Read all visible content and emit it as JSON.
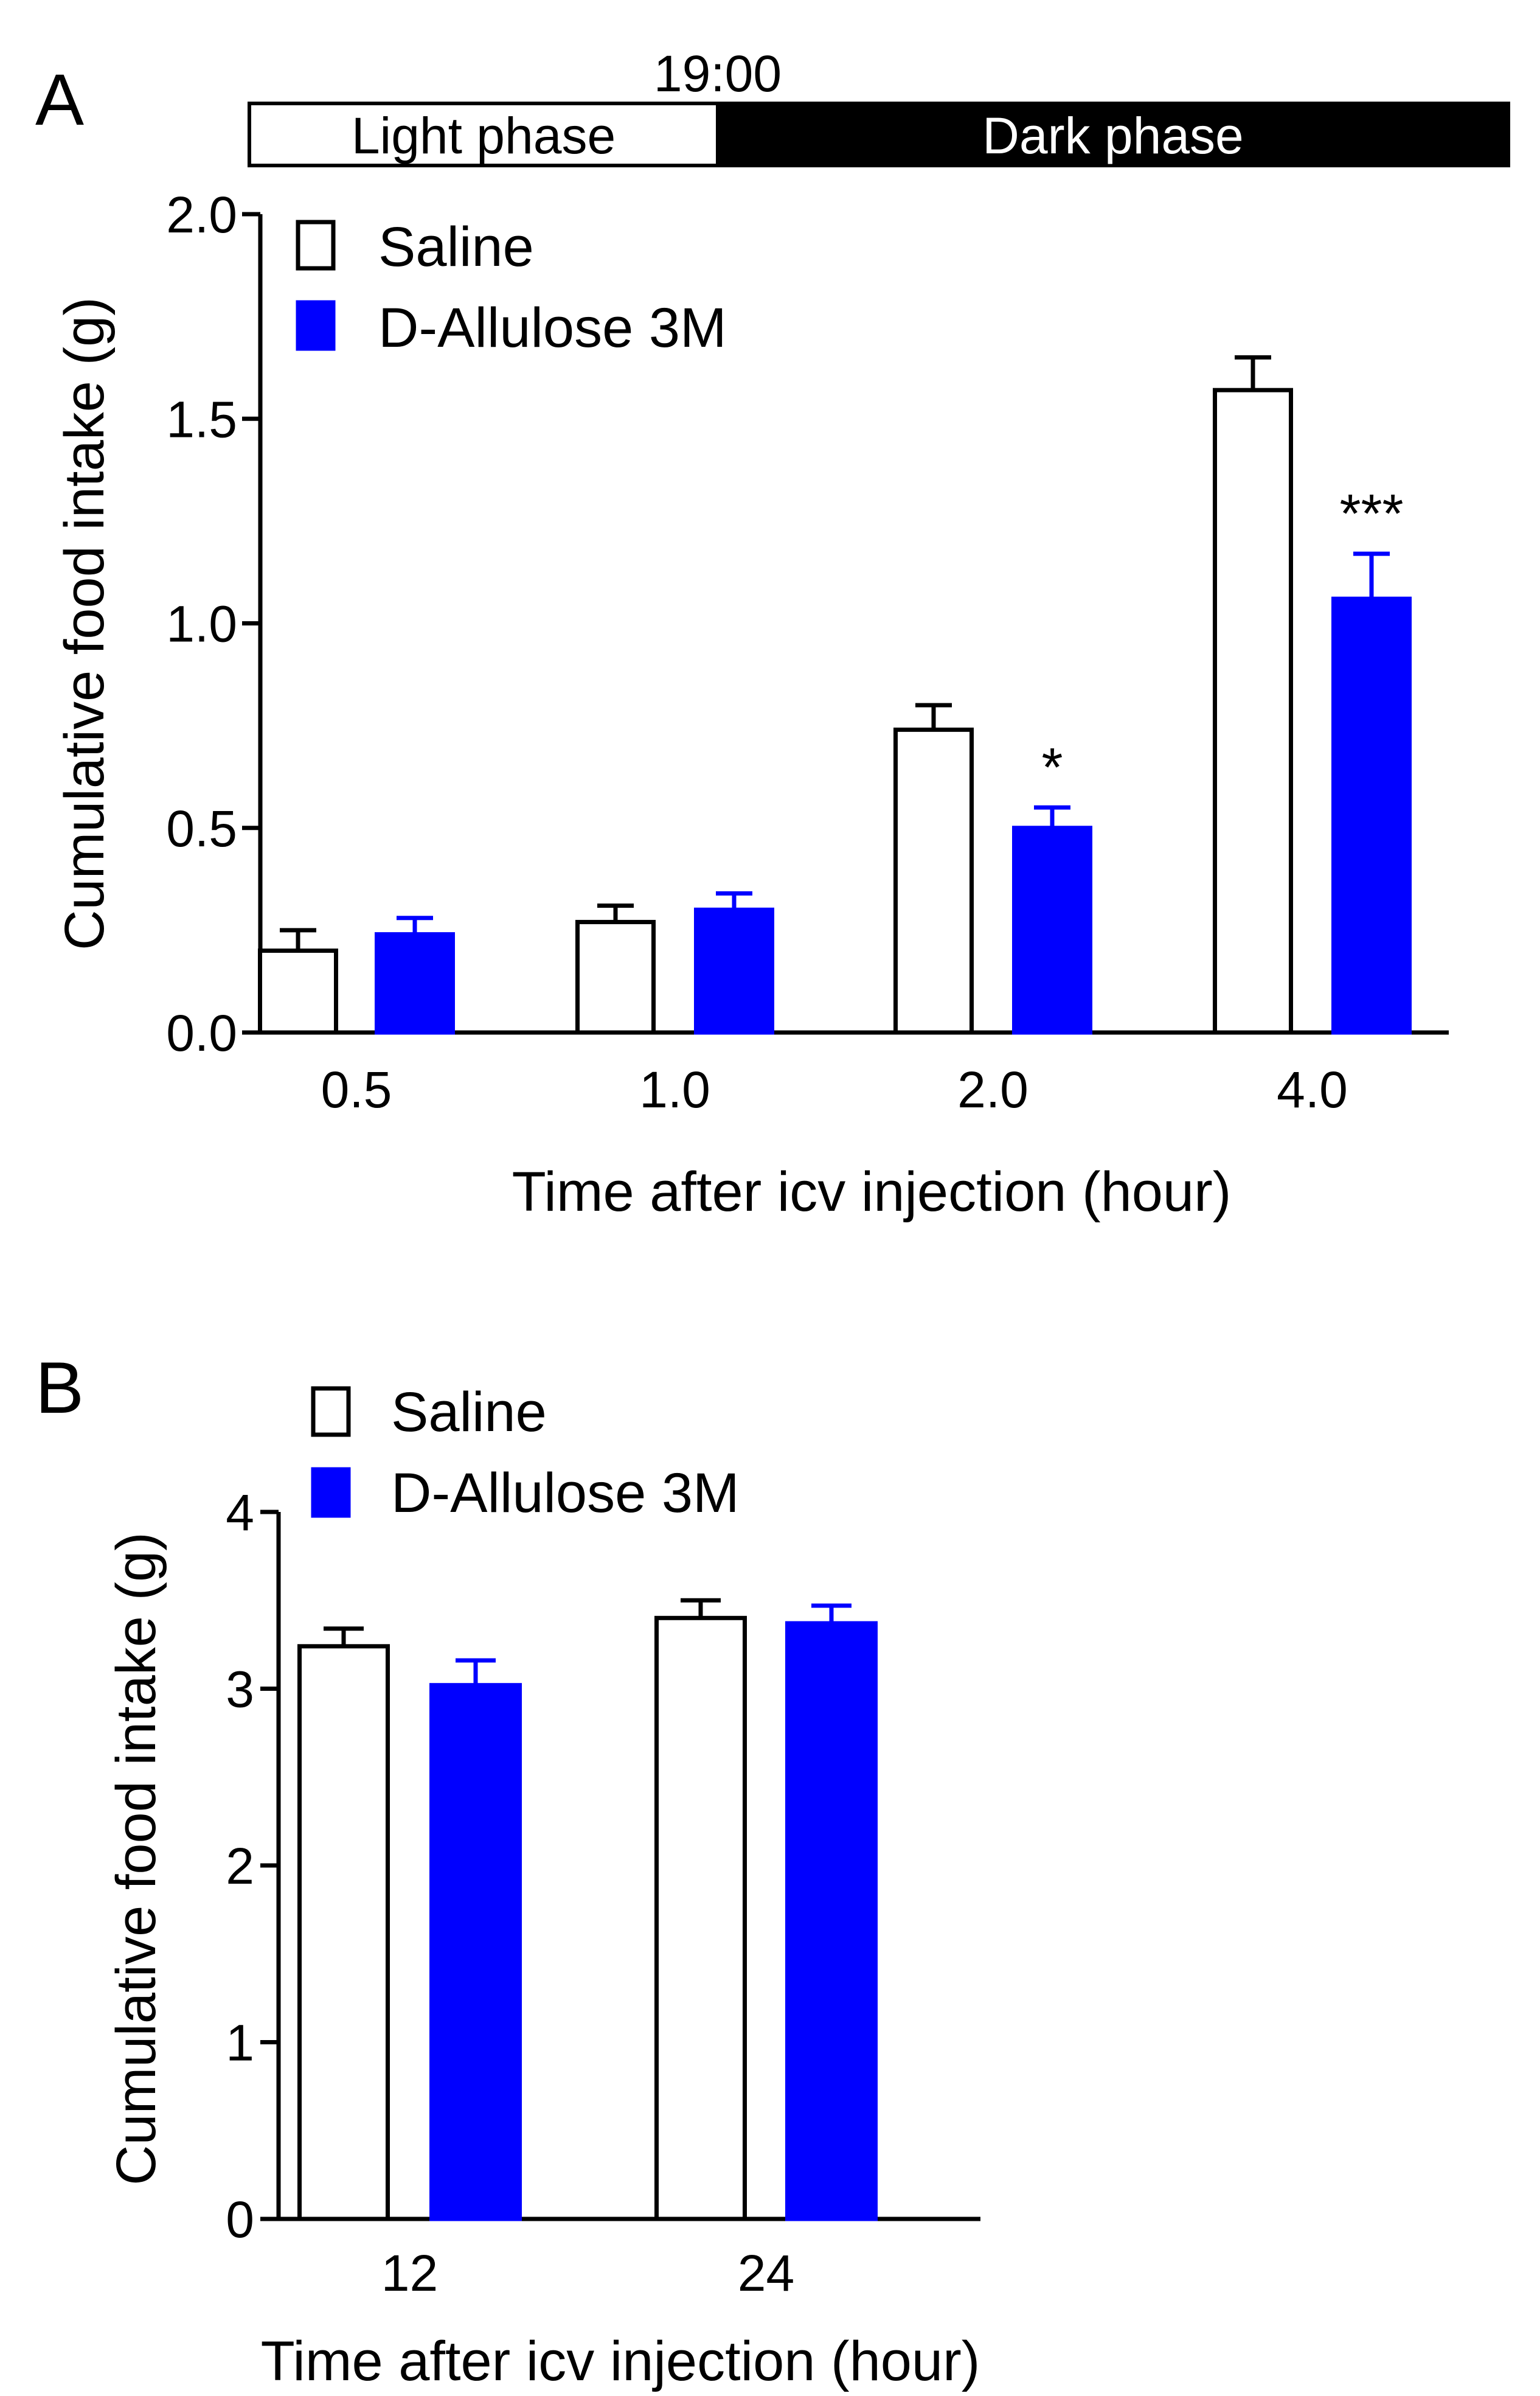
{
  "colors": {
    "saline_fill": "#ffffff",
    "allulose_fill": "#0000ff",
    "stroke": "#000000",
    "dark_phase": "#000000",
    "light_phase": "#ffffff"
  },
  "chart_data": [
    {
      "type": "bar",
      "panel_label": "A",
      "phase_bar": {
        "light_label": "Light phase",
        "dark_label": "Dark phase",
        "time_label": "19:00"
      },
      "xlabel": "Time after icv injection (hour)",
      "ylabel": "Cumulative food intake (g)",
      "ylim": [
        0,
        2.0
      ],
      "yticks": [
        "0.0",
        "0.5",
        "1.0",
        "1.5",
        "2.0"
      ],
      "yticks_values": [
        0,
        0.5,
        1.0,
        1.5,
        2.0
      ],
      "categories": [
        "0.5",
        "1.0",
        "2.0",
        "4.0"
      ],
      "series": [
        {
          "name": "Saline",
          "values": [
            0.2,
            0.27,
            0.74,
            1.57
          ],
          "errors": [
            0.05,
            0.04,
            0.06,
            0.08
          ]
        },
        {
          "name": "D-Allulose 3M",
          "values": [
            0.24,
            0.3,
            0.5,
            1.06
          ],
          "errors": [
            0.04,
            0.04,
            0.05,
            0.11
          ]
        }
      ],
      "significance": [
        "",
        "",
        "*",
        "***"
      ],
      "legend_position": "top-left"
    },
    {
      "type": "bar",
      "panel_label": "B",
      "xlabel": "Time after icv injection (hour)",
      "ylabel": "Cumulative food intake (g)",
      "ylim": [
        0,
        4
      ],
      "yticks": [
        "0",
        "1",
        "2",
        "3",
        "4"
      ],
      "yticks_values": [
        0,
        1,
        2,
        3,
        4
      ],
      "categories": [
        "12",
        "24"
      ],
      "series": [
        {
          "name": "Saline",
          "values": [
            3.24,
            3.4
          ],
          "errors": [
            0.1,
            0.1
          ]
        },
        {
          "name": "D-Allulose 3M",
          "values": [
            3.02,
            3.37
          ],
          "errors": [
            0.14,
            0.1
          ]
        }
      ],
      "significance": [
        "",
        ""
      ],
      "legend_position": "top-left"
    }
  ]
}
